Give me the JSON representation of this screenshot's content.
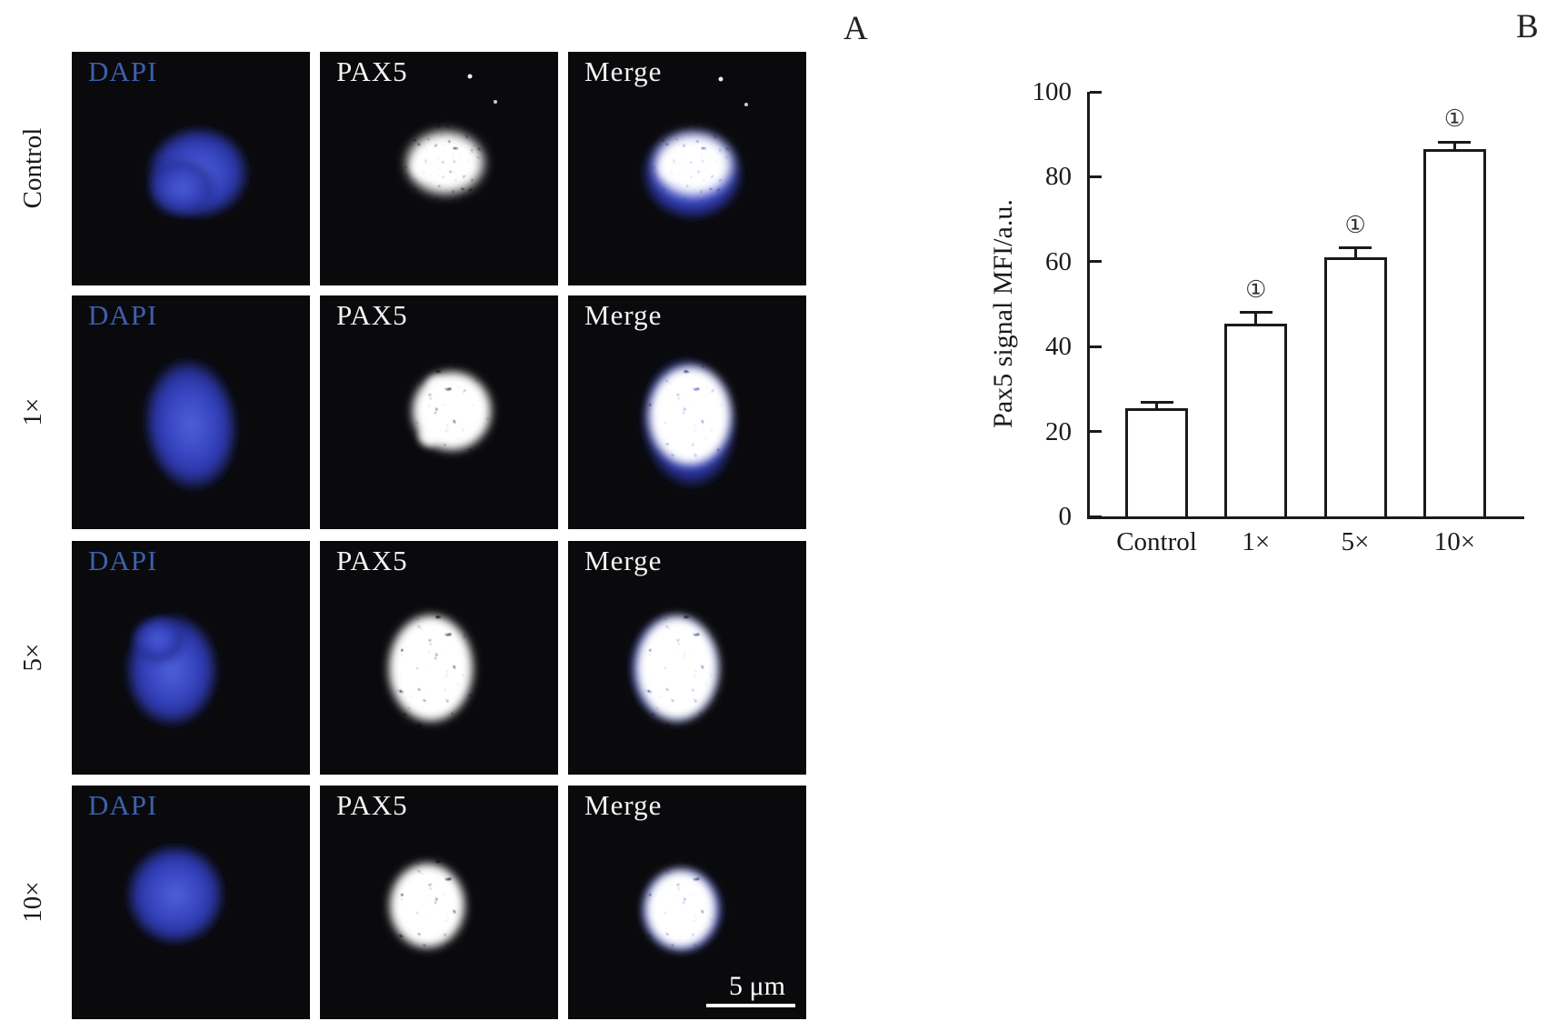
{
  "panel_a": {
    "label": "A",
    "columns": [
      "DAPI",
      "PAX5",
      "Merge"
    ],
    "rows": [
      {
        "label": "Control"
      },
      {
        "label": "1×"
      },
      {
        "label": "5×"
      },
      {
        "label": "10×"
      }
    ],
    "scale_bar_label": "5 μm",
    "dapi_label_color": "#3d60ad",
    "signal_label_color": "#f4f4f4"
  },
  "panel_b": {
    "label": "B"
  },
  "chart_data": {
    "type": "bar",
    "categories": [
      "Control",
      "1×",
      "5×",
      "10×"
    ],
    "values": [
      25.5,
      45.5,
      61,
      86.5
    ],
    "errors": [
      1.3,
      2.5,
      2.2,
      1.7
    ],
    "annotations": [
      "",
      "①",
      "①",
      "①"
    ],
    "title": "",
    "xlabel": "",
    "ylabel": "Pax5 signal MFI/a.u.",
    "ylim": [
      0,
      100
    ],
    "yticks": [
      0,
      20,
      40,
      60,
      80,
      100
    ],
    "grid": false,
    "legend": false,
    "bar_fill": "#ffffff",
    "bar_border": "#1a1a1a"
  }
}
